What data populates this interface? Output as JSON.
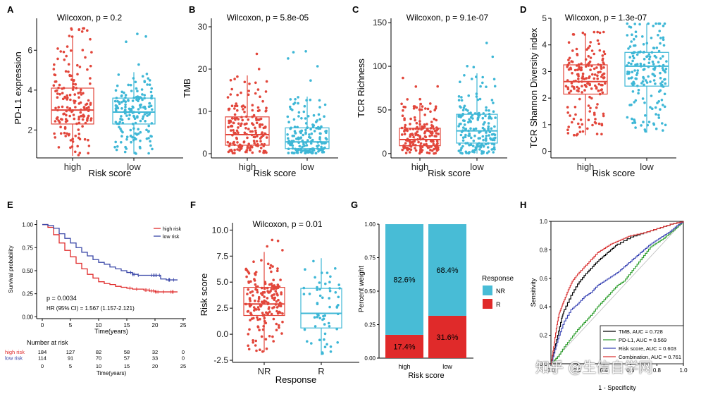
{
  "colors": {
    "high": "#E2463B",
    "low": "#3EB7D6",
    "nr": "#48BCD6",
    "r": "#E02A2A",
    "km_high": "#E02C2C",
    "km_low": "#3A47A8",
    "axis": "#000000"
  },
  "chart_data": [
    {
      "id": "A",
      "type": "box",
      "panel_label": "A",
      "title": "Wilcoxon, p = 0.2",
      "xlabel": "Risk score",
      "ylabel": "PD-L1 expression",
      "categories": [
        "high",
        "low"
      ],
      "ylim": [
        0.6,
        7.6
      ],
      "yticks": [
        2,
        4,
        6
      ],
      "boxes": [
        {
          "name": "high",
          "q1": 2.3,
          "median": 3.0,
          "q3": 4.1,
          "whisker_low": 0.7,
          "whisker_high": 6.7,
          "min_pt": 0.7,
          "max_pt": 7.2,
          "n": 170,
          "color": "#E2463B"
        },
        {
          "name": "low",
          "q1": 2.3,
          "median": 2.9,
          "q3": 3.6,
          "whisker_low": 0.8,
          "whisker_high": 4.9,
          "min_pt": 0.7,
          "max_pt": 6.9,
          "n": 170,
          "color": "#3EB7D6"
        }
      ]
    },
    {
      "id": "B",
      "type": "box",
      "panel_label": "B",
      "title": "Wilcoxon, p = 5.8e-05",
      "xlabel": "Risk score",
      "ylabel": "TMB",
      "categories": [
        "high",
        "low"
      ],
      "ylim": [
        -1,
        32
      ],
      "yticks": [
        0,
        10,
        20,
        30
      ],
      "boxes": [
        {
          "name": "high",
          "q1": 2.0,
          "median": 4.5,
          "q3": 8.7,
          "whisker_low": 0.1,
          "whisker_high": 18.5,
          "min_pt": 0.1,
          "max_pt": 27.5,
          "n": 180,
          "color": "#E2463B"
        },
        {
          "name": "low",
          "q1": 1.2,
          "median": 2.8,
          "q3": 6.1,
          "whisker_low": 0.1,
          "whisker_high": 13.5,
          "min_pt": 0.1,
          "max_pt": 30.5,
          "n": 180,
          "color": "#3EB7D6"
        }
      ]
    },
    {
      "id": "C",
      "type": "box",
      "panel_label": "C",
      "title": "Wilcoxon, p = 9.1e-07",
      "xlabel": "Risk score",
      "ylabel": "TCR Richness",
      "categories": [
        "high",
        "low"
      ],
      "ylim": [
        -5,
        155
      ],
      "yticks": [
        0,
        50,
        100,
        150
      ],
      "boxes": [
        {
          "name": "high",
          "q1": 9,
          "median": 16,
          "q3": 29,
          "whisker_low": 0,
          "whisker_high": 58,
          "min_pt": 0,
          "max_pt": 96,
          "n": 180,
          "color": "#E2463B"
        },
        {
          "name": "low",
          "q1": 12,
          "median": 26,
          "q3": 45,
          "whisker_low": 0,
          "whisker_high": 92,
          "min_pt": 0,
          "max_pt": 133,
          "n": 180,
          "color": "#3EB7D6"
        }
      ]
    },
    {
      "id": "D",
      "type": "box",
      "panel_label": "D",
      "title": "Wilcoxon, p = 1.3e-07",
      "xlabel": "Risk score",
      "ylabel": "TCR Shannon Diversity index",
      "categories": [
        "high",
        "low"
      ],
      "ylim": [
        -0.25,
        5
      ],
      "yticks": [
        0,
        1,
        2,
        3,
        4,
        5
      ],
      "boxes": [
        {
          "name": "high",
          "q1": 2.15,
          "median": 2.62,
          "q3": 3.25,
          "whisker_low": 0.6,
          "whisker_high": 4.4,
          "min_pt": 0.0,
          "max_pt": 4.5,
          "n": 180,
          "color": "#E2463B"
        },
        {
          "name": "low",
          "q1": 2.45,
          "median": 3.2,
          "q3": 3.72,
          "whisker_low": 0.7,
          "whisker_high": 4.8,
          "min_pt": 0.7,
          "max_pt": 4.8,
          "n": 180,
          "color": "#3EB7D6"
        }
      ]
    },
    {
      "id": "E",
      "type": "line",
      "panel_label": "E",
      "xlabel": "Time(years)",
      "ylabel": "Survival probability",
      "xlim": [
        -1,
        25.5
      ],
      "ylim": [
        -0.02,
        1.05
      ],
      "xticks": [
        0,
        5,
        10,
        15,
        20,
        25
      ],
      "yticks": [
        0.0,
        0.25,
        0.5,
        0.75,
        1.0
      ],
      "ytick_labels": [
        "0.00",
        "0.25",
        "0.50",
        "0.75",
        "1.00"
      ],
      "legend": [
        "high risk",
        "low risk"
      ],
      "pvalue_text": "p = 0.0034",
      "hr_text": "HR (95% CI) = 1.567 (1.157-2.121)",
      "series": [
        {
          "name": "high risk",
          "color": "#E02C2C",
          "x": [
            0,
            1,
            2,
            3,
            4,
            5,
            6,
            7,
            8,
            9,
            10,
            11,
            12,
            13,
            14,
            15,
            16,
            17,
            18,
            19,
            20,
            21,
            22,
            23,
            24
          ],
          "y": [
            1.0,
            0.97,
            0.89,
            0.8,
            0.72,
            0.65,
            0.58,
            0.52,
            0.46,
            0.42,
            0.38,
            0.36,
            0.35,
            0.33,
            0.32,
            0.31,
            0.3,
            0.3,
            0.29,
            0.28,
            0.27,
            0.27,
            0.27,
            0.27,
            0.27
          ]
        },
        {
          "name": "low risk",
          "color": "#3A47A8",
          "x": [
            0,
            1,
            2,
            3,
            4,
            5,
            6,
            7,
            8,
            9,
            10,
            11,
            12,
            13,
            14,
            15,
            16,
            17,
            18,
            19,
            20,
            21,
            22,
            23,
            24
          ],
          "y": [
            1.0,
            0.99,
            0.96,
            0.9,
            0.85,
            0.8,
            0.75,
            0.7,
            0.66,
            0.62,
            0.59,
            0.57,
            0.54,
            0.52,
            0.5,
            0.48,
            0.46,
            0.45,
            0.45,
            0.45,
            0.45,
            0.41,
            0.4,
            0.4,
            0.4
          ]
        }
      ],
      "risk_table": {
        "title": "Number at risk",
        "rows": [
          {
            "name": "high risk",
            "values": [
              "184",
              "127",
              "82",
              "58",
              "32",
              "0"
            ]
          },
          {
            "name": "low risk",
            "values": [
              "114",
              "91",
              "70",
              "57",
              "33",
              "0"
            ]
          }
        ],
        "times": [
          0,
          5,
          10,
          15,
          20,
          25
        ],
        "xlabel": "Time(years)"
      }
    },
    {
      "id": "F",
      "type": "box",
      "panel_label": "F",
      "title": "Wilcoxon, p = 0.01",
      "xlabel": "Response",
      "ylabel": "Risk score",
      "categories": [
        "NR",
        "R"
      ],
      "ylim": [
        -2.7,
        10.7
      ],
      "yticks": [
        -2.5,
        0.0,
        2.5,
        5.0,
        7.5,
        10.0
      ],
      "ytick_labels": [
        "-2.5",
        "0.0",
        "2.5",
        "5.0",
        "7.5",
        "10.0"
      ],
      "boxes": [
        {
          "name": "NR",
          "q1": 1.8,
          "median": 2.9,
          "q3": 4.5,
          "whisker_low": -1.7,
          "whisker_high": 7.9,
          "min_pt": -1.8,
          "max_pt": 9.1,
          "n": 180,
          "color": "#E2463B"
        },
        {
          "name": "R",
          "q1": 0.6,
          "median": 2.0,
          "q3": 4.4,
          "whisker_low": -2.0,
          "whisker_high": 7.3,
          "min_pt": -2.1,
          "max_pt": 10.0,
          "n": 60,
          "color": "#3EB7D6"
        }
      ]
    },
    {
      "id": "G",
      "type": "bar",
      "panel_label": "G",
      "xlabel": "Risk score",
      "ylabel": "Percent weight",
      "categories": [
        "high",
        "low"
      ],
      "ylim": [
        0,
        1.0
      ],
      "yticks": [
        0.0,
        0.25,
        0.5,
        0.75,
        1.0
      ],
      "ytick_labels": [
        "0.00",
        "0.25",
        "0.50",
        "0.75",
        "1.00"
      ],
      "stacked": true,
      "series": [
        {
          "name": "R",
          "values": [
            0.174,
            0.316
          ],
          "labels": [
            "17.4%",
            "31.6%"
          ],
          "color": "#E02A2A"
        },
        {
          "name": "NR",
          "values": [
            0.826,
            0.684
          ],
          "labels": [
            "82.6%",
            "68.4%"
          ],
          "color": "#48BCD6"
        }
      ],
      "legend_title": "Response",
      "legend": [
        "NR",
        "R"
      ]
    },
    {
      "id": "H",
      "type": "line",
      "panel_label": "H",
      "xlabel": "1 - Specificity",
      "ylabel": "Sensitivity",
      "xlim": [
        0,
        1
      ],
      "ylim": [
        0,
        1
      ],
      "xticks": [
        0.0,
        0.2,
        0.4,
        0.6,
        0.8,
        1.0
      ],
      "yticks": [
        0.0,
        0.2,
        0.4,
        0.6,
        0.8,
        1.0
      ],
      "tick_labels": [
        "0.0",
        "0.2",
        "0.4",
        "0.6",
        "0.8",
        "1.0"
      ],
      "series": [
        {
          "name": "TMB, AUC = 0.728",
          "color": "#000000",
          "x": [
            0,
            0.02,
            0.05,
            0.08,
            0.1,
            0.15,
            0.2,
            0.25,
            0.3,
            0.35,
            0.4,
            0.45,
            0.5,
            0.6,
            0.7,
            0.8,
            0.9,
            1.0
          ],
          "y": [
            0,
            0.08,
            0.2,
            0.32,
            0.38,
            0.48,
            0.56,
            0.62,
            0.67,
            0.72,
            0.76,
            0.8,
            0.84,
            0.89,
            0.92,
            0.95,
            0.98,
            1.0
          ]
        },
        {
          "name": "PD-L1, AUC = 0.569",
          "color": "#2E9E2E",
          "x": [
            0,
            0.05,
            0.1,
            0.15,
            0.2,
            0.25,
            0.3,
            0.35,
            0.4,
            0.45,
            0.5,
            0.55,
            0.6,
            0.65,
            0.7,
            0.75,
            0.8,
            0.85,
            0.9,
            0.95,
            1.0
          ],
          "y": [
            0,
            0.05,
            0.12,
            0.18,
            0.24,
            0.29,
            0.34,
            0.4,
            0.45,
            0.5,
            0.55,
            0.58,
            0.64,
            0.7,
            0.76,
            0.82,
            0.85,
            0.88,
            0.92,
            0.96,
            1.0
          ]
        },
        {
          "name": "Risk score, AUC = 0.603",
          "color": "#3C47B5",
          "x": [
            0,
            0.03,
            0.06,
            0.1,
            0.15,
            0.2,
            0.25,
            0.3,
            0.35,
            0.4,
            0.45,
            0.5,
            0.55,
            0.6,
            0.65,
            0.7,
            0.75,
            0.8,
            0.85,
            0.9,
            0.95,
            1.0
          ],
          "y": [
            0,
            0.1,
            0.2,
            0.3,
            0.38,
            0.42,
            0.47,
            0.5,
            0.55,
            0.58,
            0.61,
            0.64,
            0.68,
            0.72,
            0.76,
            0.8,
            0.84,
            0.87,
            0.9,
            0.93,
            0.97,
            1.0
          ]
        },
        {
          "name": "Combination, AUC = 0.761",
          "color": "#D93535",
          "x": [
            0,
            0.02,
            0.04,
            0.06,
            0.08,
            0.1,
            0.13,
            0.16,
            0.2,
            0.25,
            0.3,
            0.35,
            0.4,
            0.45,
            0.5,
            0.55,
            0.6,
            0.7,
            0.8,
            0.9,
            1.0
          ],
          "y": [
            0,
            0.12,
            0.25,
            0.35,
            0.4,
            0.45,
            0.52,
            0.58,
            0.63,
            0.68,
            0.73,
            0.78,
            0.81,
            0.84,
            0.86,
            0.88,
            0.9,
            0.92,
            0.95,
            0.98,
            1.0
          ]
        }
      ]
    }
  ],
  "watermark": "知乎 @生信自学网"
}
